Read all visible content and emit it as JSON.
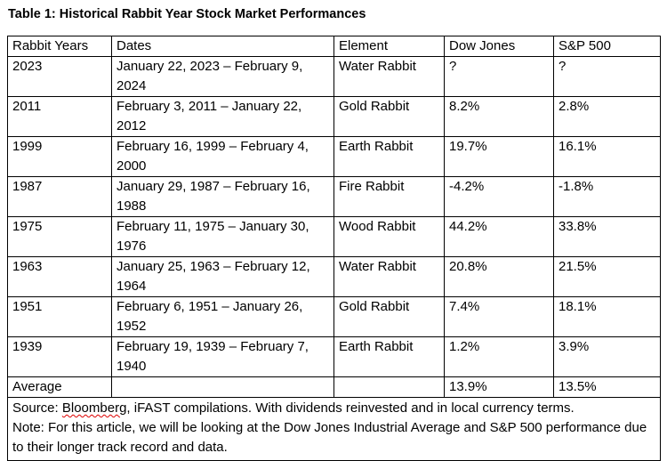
{
  "title": "Table 1: Historical Rabbit Year Stock Market Performances",
  "headers": [
    "Rabbit Years",
    "Dates",
    "Element",
    "Dow Jones",
    "S&P 500"
  ],
  "rows": [
    {
      "year": "2023",
      "dates": "January 22, 2023 – February 9, 2024",
      "element": "Water Rabbit",
      "dow": "?",
      "sp": "?"
    },
    {
      "year": "2011",
      "dates": "February 3, 2011 – January 22, 2012",
      "element": "Gold Rabbit",
      "dow": "8.2%",
      "sp": "2.8%"
    },
    {
      "year": "1999",
      "dates": "February 16, 1999 – February 4, 2000",
      "element": "Earth Rabbit",
      "dow": "19.7%",
      "sp": "16.1%"
    },
    {
      "year": "1987",
      "dates": "January 29, 1987 – February 16, 1988",
      "element": "Fire Rabbit",
      "dow": "-4.2%",
      "sp": "-1.8%"
    },
    {
      "year": "1975",
      "dates": "February 11, 1975 – January 30, 1976",
      "element": "Wood Rabbit",
      "dow": "44.2%",
      "sp": "33.8%"
    },
    {
      "year": "1963",
      "dates": "January 25, 1963 – February 12, 1964",
      "element": "Water Rabbit",
      "dow": "20.8%",
      "sp": "21.5%"
    },
    {
      "year": "1951",
      "dates": "February 6, 1951 – January 26, 1952",
      "element": "Gold Rabbit",
      "dow": "7.4%",
      "sp": "18.1%"
    },
    {
      "year": "1939",
      "dates": "February 19, 1939 – February 7, 1940",
      "element": "Earth Rabbit",
      "dow": "1.2%",
      "sp": "3.9%"
    }
  ],
  "average": {
    "label": "Average",
    "dow": "13.9%",
    "sp": "13.5%"
  },
  "footnote": {
    "source_prefix": "Source: ",
    "source_bloomberg": "Bloomberg",
    "source_rest": ", iFAST compilations. With dividends reinvested and in local currency terms.",
    "note": "Note: For this article, we will be looking at the Dow Jones Industrial Average and S&P 500 performance due to their longer track record and data."
  }
}
